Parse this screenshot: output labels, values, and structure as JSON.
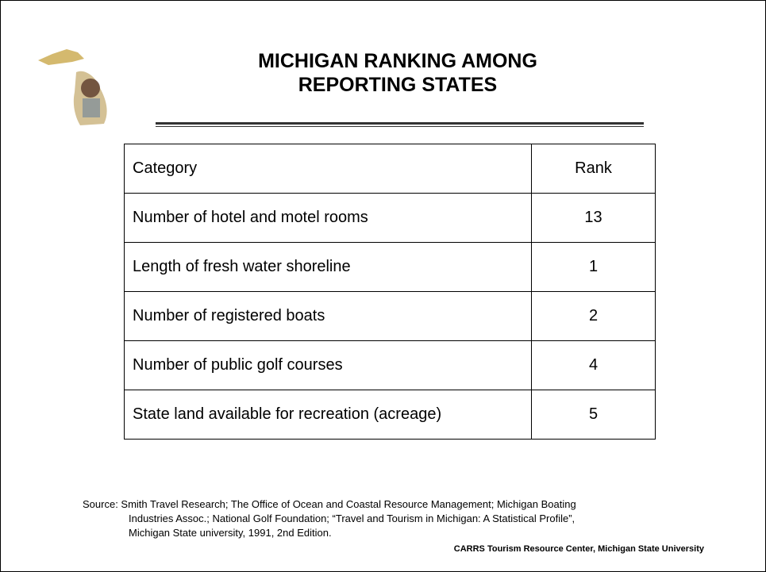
{
  "header": {
    "title": [
      "MICHIGAN RANKING AMONG",
      "REPORTING STATES"
    ]
  },
  "table": {
    "columns": [
      "Category",
      "Rank"
    ],
    "rows": [
      [
        "Number of hotel and motel rooms",
        13
      ],
      [
        "Length of fresh water shoreline",
        1
      ],
      [
        "Number of registered boats",
        2
      ],
      [
        "Number of public golf courses",
        4
      ],
      [
        "State land available for recreation (acreage)",
        5
      ]
    ]
  },
  "footer": {
    "source": [
      "Source: Smith Travel Research; The Office of Ocean and Coastal Resource Management; Michigan Boating",
      "Industries Assoc.; National Golf Foundation; “Travel and Tourism in Michigan: A Statistical Profile”,",
      "Michigan State university, 1991, 2nd Edition."
    ],
    "credit": "CARRS Tourism Resource Center, Michigan State University"
  }
}
